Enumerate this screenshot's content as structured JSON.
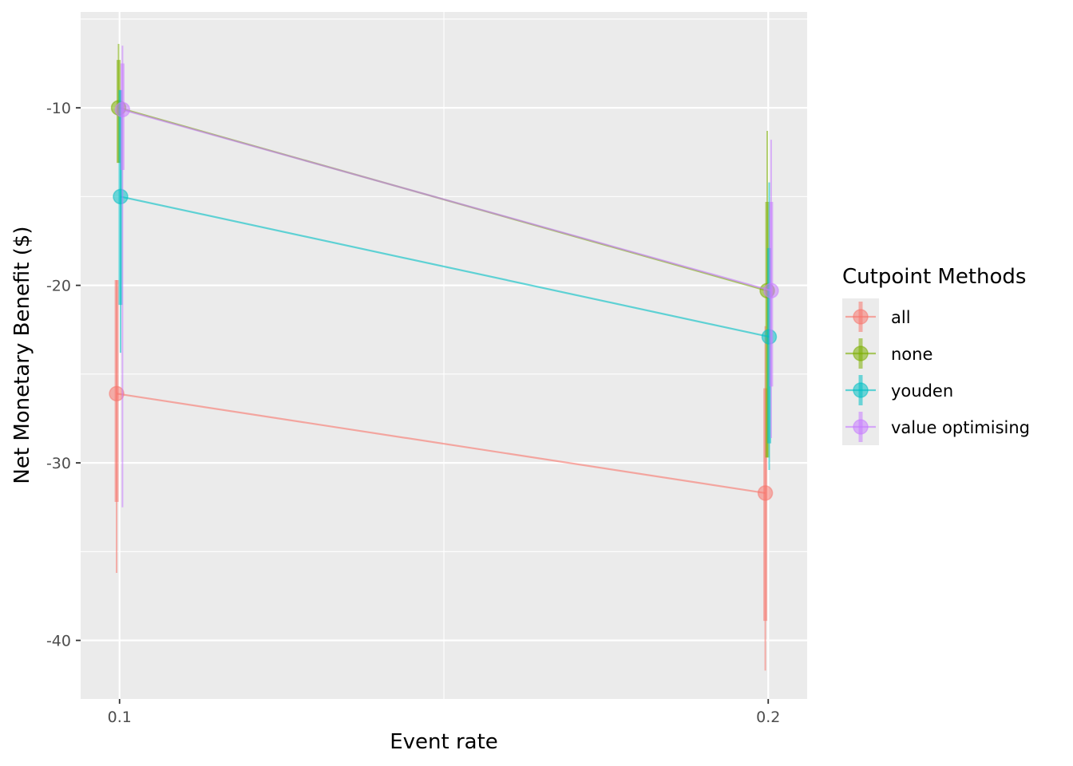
{
  "chart_data": {
    "type": "line",
    "xlabel": "Event rate",
    "ylabel": "Net Monetary Benefit ($)",
    "x_ticks": [
      "0.1",
      "0.2"
    ],
    "y_ticks": [
      "-10",
      "-20",
      "-30",
      "-40"
    ],
    "xlim": [
      0.094,
      0.206
    ],
    "ylim": [
      -43.3,
      -4.6
    ],
    "grid": true,
    "legend": {
      "title": "Cutpoint Methods",
      "position": "right"
    },
    "series": [
      {
        "name": "all",
        "color": "#F8766D",
        "points": [
          {
            "x": 0.1,
            "y": -26.1,
            "inner": [
              -32.2,
              -19.7
            ],
            "outer": [
              -36.2,
              -19.7
            ]
          },
          {
            "x": 0.2,
            "y": -31.7,
            "inner": [
              -38.9,
              -25.8
            ],
            "outer": [
              -41.7,
              -22.3
            ]
          }
        ]
      },
      {
        "name": "none",
        "color": "#7CAE00",
        "points": [
          {
            "x": 0.1,
            "y": -10.0,
            "inner": [
              -13.1,
              -7.3
            ],
            "outer": [
              -13.1,
              -6.4
            ]
          },
          {
            "x": 0.2,
            "y": -20.3,
            "inner": [
              -29.7,
              -15.3
            ],
            "outer": [
              -29.7,
              -11.3
            ]
          }
        ]
      },
      {
        "name": "youden",
        "color": "#00BFC4",
        "points": [
          {
            "x": 0.1,
            "y": -15.0,
            "inner": [
              -21.1,
              -9.0
            ],
            "outer": [
              -23.8,
              -9.0
            ]
          },
          {
            "x": 0.2,
            "y": -22.9,
            "inner": [
              -28.9,
              -17.9
            ],
            "outer": [
              -30.4,
              -14.2
            ]
          }
        ]
      },
      {
        "name": "value optimising",
        "color": "#C77CFF",
        "points": [
          {
            "x": 0.1,
            "y": -10.1,
            "inner": [
              -13.5,
              -7.5
            ],
            "outer": [
              -32.5,
              -6.5
            ]
          },
          {
            "x": 0.2,
            "y": -20.3,
            "inner": [
              -25.7,
              -15.3
            ],
            "outer": [
              -28.6,
              -11.8
            ]
          }
        ]
      }
    ]
  }
}
